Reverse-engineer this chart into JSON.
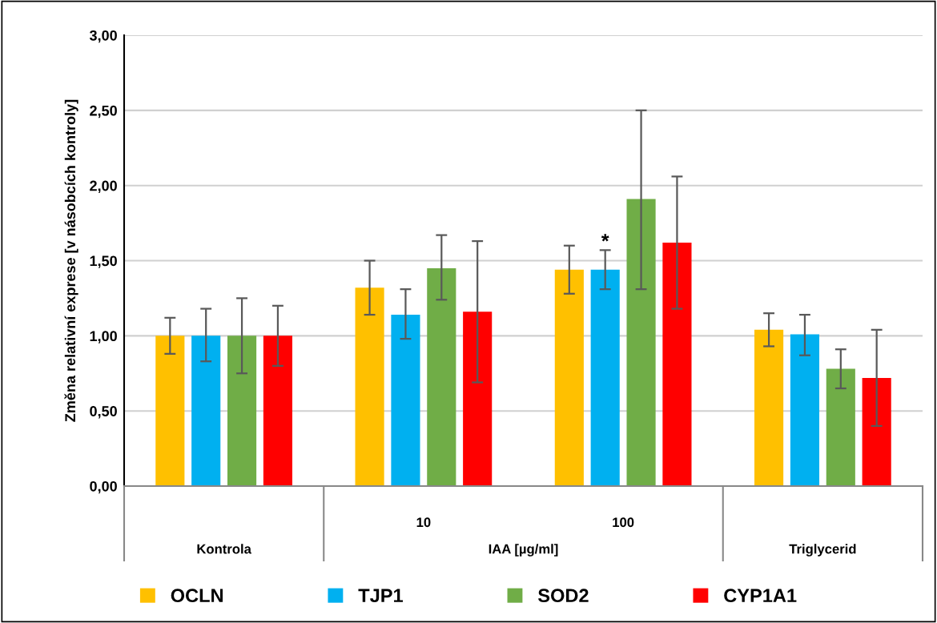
{
  "chart_data": {
    "type": "bar",
    "ylabel": "Změna relativní exprese [v násobcích kontroly]",
    "categories": [
      null,
      "10",
      "100",
      null
    ],
    "series": [
      {
        "name": "OCLN",
        "color": "#ffc000",
        "values": [
          1.0,
          1.32,
          1.44,
          1.04
        ],
        "errors": [
          [
            0.88,
            1.12
          ],
          [
            1.14,
            1.5
          ],
          [
            1.28,
            1.6
          ],
          [
            0.93,
            1.15
          ]
        ]
      },
      {
        "name": "TJP1",
        "color": "#00b0f0",
        "values": [
          1.0,
          1.14,
          1.44,
          1.01
        ],
        "errors": [
          [
            0.83,
            1.18
          ],
          [
            0.98,
            1.31
          ],
          [
            1.31,
            1.57
          ],
          [
            0.87,
            1.14
          ]
        ]
      },
      {
        "name": "SOD2",
        "color": "#70ad47",
        "values": [
          1.0,
          1.45,
          1.91,
          0.78
        ],
        "errors": [
          [
            0.75,
            1.25
          ],
          [
            1.24,
            1.67
          ],
          [
            1.31,
            2.5
          ],
          [
            0.65,
            0.91
          ]
        ]
      },
      {
        "name": "CYP1A1",
        "color": "#ff0000",
        "values": [
          1.0,
          1.16,
          1.62,
          0.72
        ],
        "errors": [
          [
            0.8,
            1.2
          ],
          [
            0.69,
            1.63
          ],
          [
            1.18,
            2.06
          ],
          [
            0.4,
            1.04
          ]
        ]
      }
    ],
    "ylim": [
      0,
      3
    ],
    "yticks": [
      {
        "value": 0,
        "label": "0,00"
      },
      {
        "value": 0.5,
        "label": "0,50"
      },
      {
        "value": 1,
        "label": "1,00"
      },
      {
        "value": 1.5,
        "label": "1,50"
      },
      {
        "value": 2,
        "label": "2,00"
      },
      {
        "value": 2.5,
        "label": "2,50"
      },
      {
        "value": 3,
        "label": "3,00"
      }
    ],
    "grid": "y",
    "legend": "bottom",
    "annotations": [
      "Kontrola",
      "IAA [µg/ml]",
      "Triglycerid",
      {
        "text": "*",
        "x": "100",
        "y": 1.62
      }
    ]
  }
}
